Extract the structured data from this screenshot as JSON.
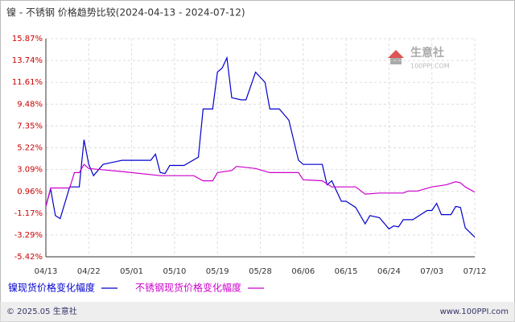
{
  "chart_data": {
    "type": "line",
    "title": "镍 - 不锈钢 价格趋势比较(2024-04-13 - 2024-07-12)",
    "xlim": [
      0,
      90
    ],
    "xticks": [
      {
        "value": 0,
        "label": "04/13"
      },
      {
        "value": 9,
        "label": "04/22"
      },
      {
        "value": 18,
        "label": "05/01"
      },
      {
        "value": 27,
        "label": "05/10"
      },
      {
        "value": 36,
        "label": "05/19"
      },
      {
        "value": 45,
        "label": "05/28"
      },
      {
        "value": 54,
        "label": "06/06"
      },
      {
        "value": 63,
        "label": "06/15"
      },
      {
        "value": 72,
        "label": "06/24"
      },
      {
        "value": 81,
        "label": "07/03"
      },
      {
        "value": 90,
        "label": "07/12"
      }
    ],
    "ylim": [
      -5.42,
      15.87
    ],
    "yticks": [
      {
        "value": -5.42,
        "label": "-5.42%"
      },
      {
        "value": -3.29,
        "label": "-3.29%"
      },
      {
        "value": -1.17,
        "label": "-1.17%"
      },
      {
        "value": 0.96,
        "label": "0.96%"
      },
      {
        "value": 3.09,
        "label": "3.09%"
      },
      {
        "value": 5.22,
        "label": "5.22%"
      },
      {
        "value": 7.35,
        "label": "7.35%"
      },
      {
        "value": 9.48,
        "label": "9.48%"
      },
      {
        "value": 11.61,
        "label": "11.61%"
      },
      {
        "value": 13.74,
        "label": "13.74%"
      },
      {
        "value": 15.87,
        "label": "15.87%"
      }
    ],
    "grid": true,
    "series": [
      {
        "name": "镍现货价格变化幅度",
        "color": "#0000cc",
        "x": [
          0,
          1,
          2,
          3,
          5,
          7,
          8,
          9,
          10,
          12,
          16,
          22,
          23,
          24,
          25,
          26,
          29,
          32,
          33,
          35,
          36,
          37,
          38,
          39,
          41,
          42,
          44,
          46,
          47,
          49,
          51,
          53,
          54,
          58,
          59,
          60,
          62,
          63,
          65,
          67,
          68,
          70,
          72,
          73,
          74,
          75,
          77,
          80,
          81,
          82,
          83,
          85,
          86,
          87,
          88,
          90
        ],
        "values": [
          -0.5,
          1.2,
          -1.4,
          -1.7,
          1.4,
          1.4,
          6.0,
          3.6,
          2.5,
          3.6,
          4.0,
          4.0,
          4.6,
          2.8,
          2.7,
          3.5,
          3.5,
          4.3,
          9.0,
          9.0,
          12.6,
          13.0,
          14.0,
          10.1,
          9.9,
          9.9,
          12.6,
          11.6,
          9.0,
          9.0,
          7.9,
          4.0,
          3.6,
          3.6,
          1.6,
          2.0,
          0.0,
          0.0,
          -0.6,
          -2.2,
          -1.4,
          -1.6,
          -2.7,
          -2.4,
          -2.5,
          -1.8,
          -1.8,
          -0.9,
          -0.9,
          -0.2,
          -1.3,
          -1.3,
          -0.5,
          -0.6,
          -2.6,
          -3.5
        ]
      },
      {
        "name": "不锈钢现货价格变化幅度",
        "color": "#cc00cc",
        "x": [
          0,
          1,
          5,
          6,
          7,
          8,
          9,
          16,
          24,
          31,
          33,
          35,
          36,
          39,
          40,
          44,
          47,
          53,
          54,
          58,
          60,
          65,
          67,
          70,
          75,
          76,
          78,
          81,
          84,
          86,
          87,
          88,
          90
        ],
        "values": [
          -0.5,
          1.3,
          1.3,
          2.8,
          2.8,
          3.6,
          3.2,
          2.9,
          2.5,
          2.5,
          2.0,
          2.0,
          2.8,
          3.0,
          3.4,
          3.2,
          2.8,
          2.8,
          2.1,
          2.0,
          1.4,
          1.4,
          0.7,
          0.8,
          0.8,
          1.0,
          1.0,
          1.4,
          1.6,
          1.9,
          1.8,
          1.4,
          0.9
        ]
      }
    ],
    "watermark": {
      "name": "生意社",
      "site": "100PPI.COM"
    },
    "footer": {
      "left": "© 2025.05 生意社",
      "right": "www.100PPI.com"
    }
  }
}
